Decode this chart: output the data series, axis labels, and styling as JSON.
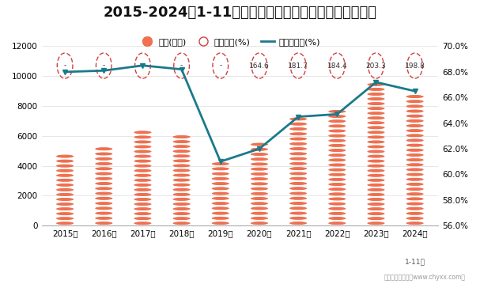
{
  "title": "2015-2024年1-11月宁夏回族自治区工业企业负债统计图",
  "years": [
    "2015年",
    "2016年",
    "2017年",
    "2018年",
    "2019年",
    "2020年",
    "2021年",
    "2022年",
    "2023年",
    "2024年"
  ],
  "last_year_suffix": "1-11月",
  "liabilities": [
    4800,
    5300,
    6400,
    6100,
    4300,
    5600,
    7300,
    7800,
    9600,
    8800
  ],
  "asset_liability_rate": [
    68.0,
    68.1,
    68.5,
    68.2,
    61.0,
    62.0,
    64.5,
    64.7,
    67.2,
    66.5
  ],
  "equity_ratio": [
    "-",
    "-",
    "-",
    "-",
    "-",
    "164.6",
    "181.7",
    "184.4",
    "203.3",
    "198.8"
  ],
  "coin_color_face": "#F07050",
  "coin_color_edge": "#E86040",
  "coin_color_light": "#F8A080",
  "line_color": "#1A7A8A",
  "ellipse_dashed_color": "#D04040",
  "left_ylim": [
    0,
    12000
  ],
  "right_ylim": [
    56.0,
    70.0
  ],
  "left_yticks": [
    0,
    2000,
    4000,
    6000,
    8000,
    10000,
    12000
  ],
  "right_yticks": [
    56.0,
    58.0,
    60.0,
    62.0,
    64.0,
    66.0,
    68.0,
    70.0
  ],
  "background_color": "#FFFFFF",
  "title_fontsize": 13,
  "legend_fontsize": 8,
  "axis_fontsize": 7.5,
  "watermark": "制图：智研咨询（www.chyxx.com）"
}
